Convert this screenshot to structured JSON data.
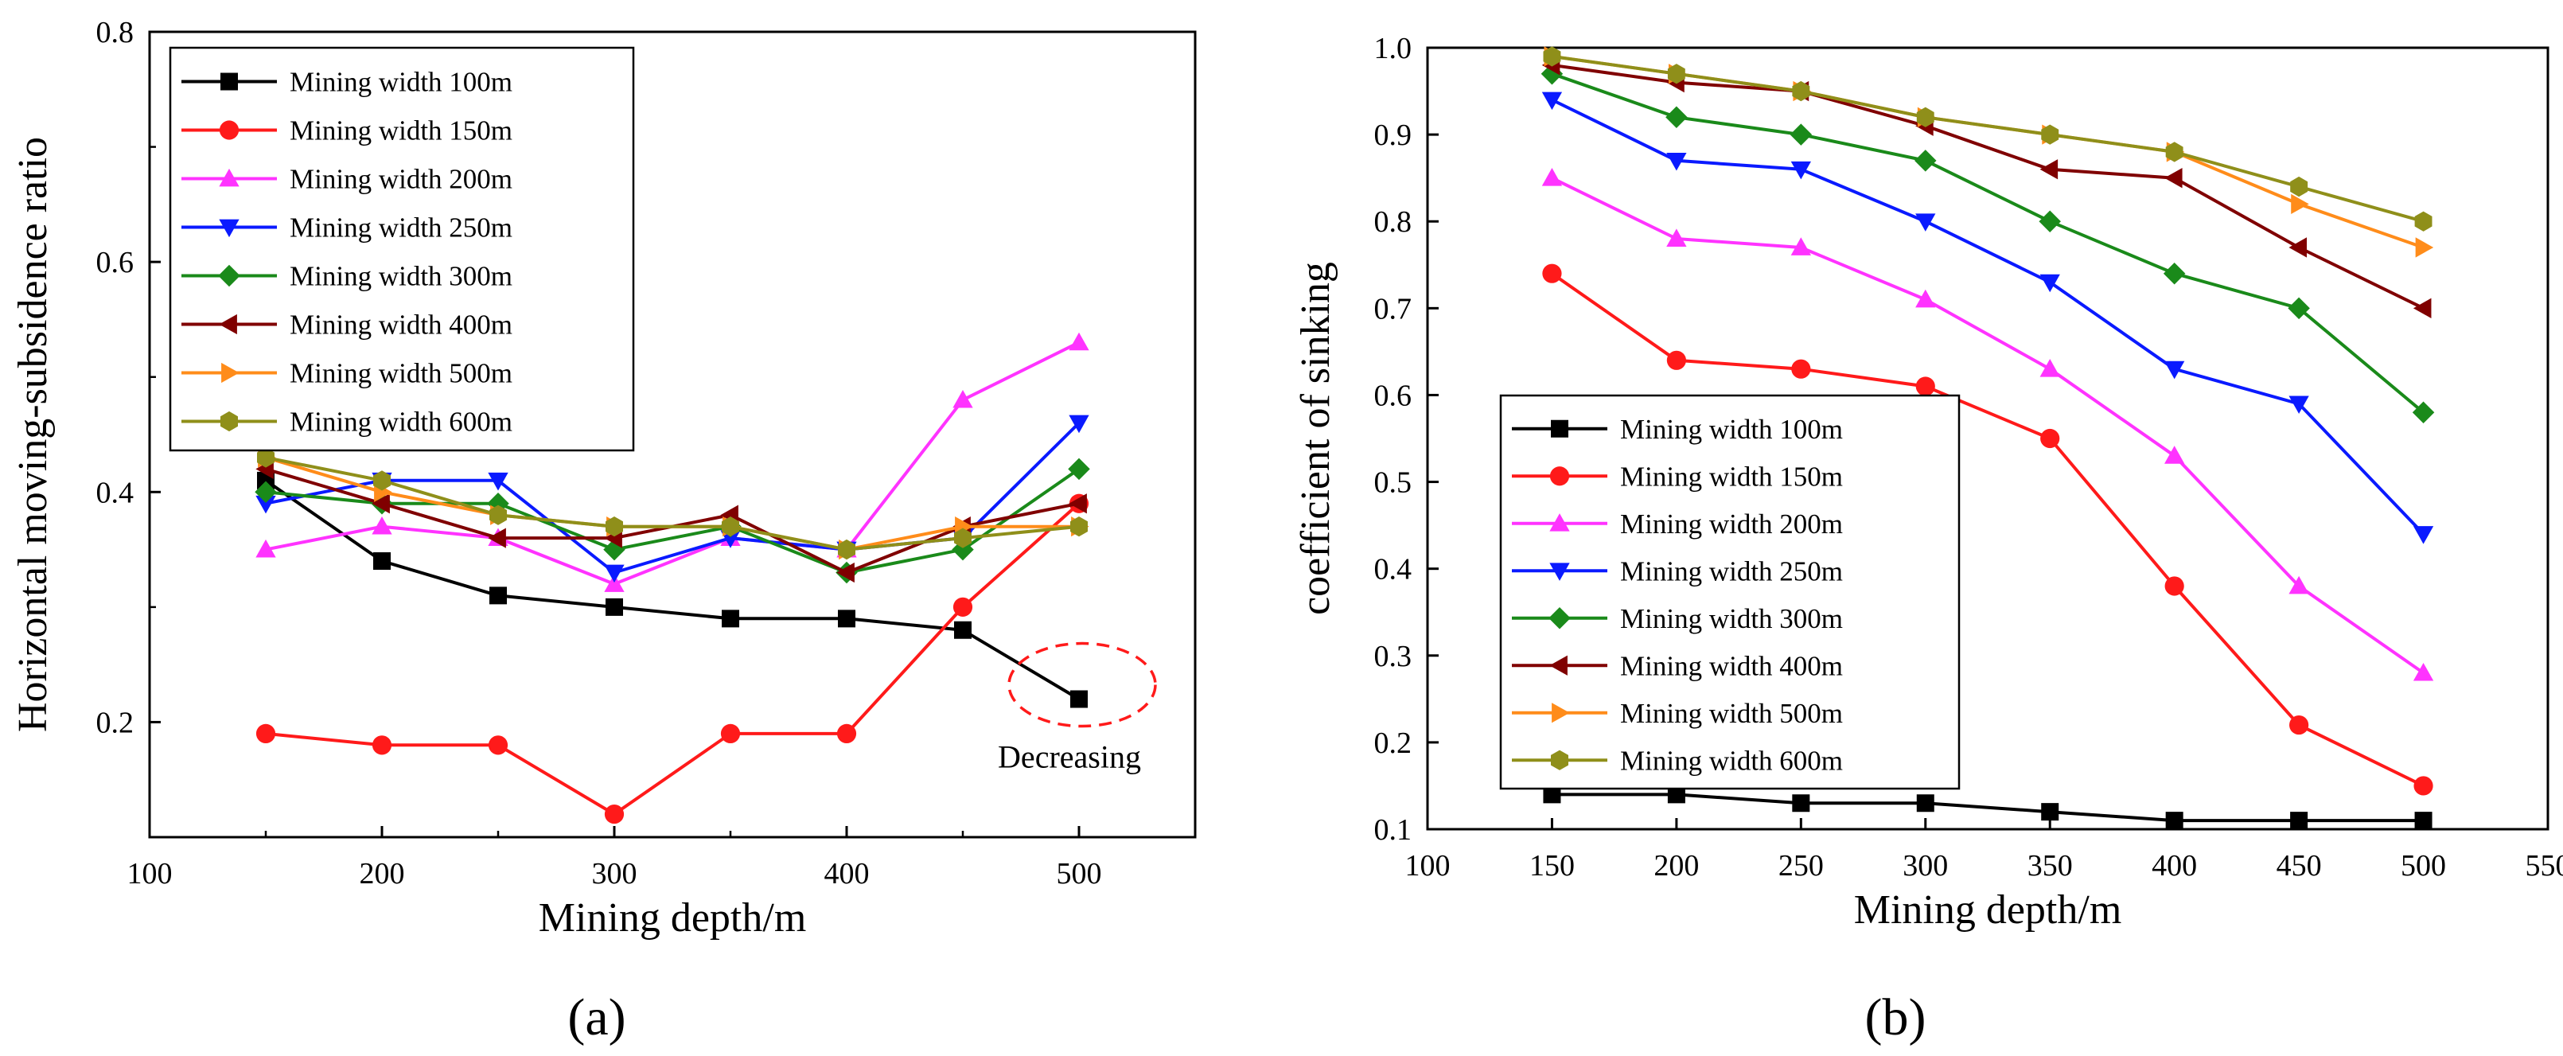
{
  "chart_data": [
    {
      "type": "line",
      "panel_label": "(a)",
      "title": "",
      "xlabel": "Mining depth/m",
      "ylabel": "Horizontal moving-subsidence ratio",
      "xlim": [
        100,
        550
      ],
      "ylim": [
        0.1,
        0.8
      ],
      "xticks": [
        "100",
        "200",
        "300",
        "400",
        "500"
      ],
      "yticks": [
        "0.2",
        "0.4",
        "0.6",
        "0.8"
      ],
      "legend_position": "top-left",
      "x": [
        150,
        200,
        250,
        300,
        350,
        400,
        450,
        500
      ],
      "series": [
        {
          "name": "Mining width 100m",
          "color": "#000000",
          "marker": "square",
          "values": [
            0.41,
            0.34,
            0.31,
            0.3,
            0.29,
            0.29,
            0.28,
            0.22
          ]
        },
        {
          "name": "Mining width 150m",
          "color": "#ff1a1a",
          "marker": "circle",
          "values": [
            0.19,
            0.18,
            0.18,
            0.12,
            0.19,
            0.19,
            0.3,
            0.39
          ]
        },
        {
          "name": "Mining width 200m",
          "color": "#ff33ff",
          "marker": "triangle-up",
          "values": [
            0.35,
            0.37,
            0.36,
            0.32,
            0.36,
            0.35,
            0.48,
            0.53
          ]
        },
        {
          "name": "Mining width 250m",
          "color": "#0a1aff",
          "marker": "triangle-down",
          "values": [
            0.39,
            0.41,
            0.41,
            0.33,
            0.36,
            0.35,
            0.36,
            0.46
          ]
        },
        {
          "name": "Mining width 300m",
          "color": "#1a8a1a",
          "marker": "diamond",
          "values": [
            0.4,
            0.39,
            0.39,
            0.35,
            0.37,
            0.33,
            0.35,
            0.42
          ]
        },
        {
          "name": "Mining width 400m",
          "color": "#800000",
          "marker": "triangle-left",
          "values": [
            0.42,
            0.39,
            0.36,
            0.36,
            0.38,
            0.33,
            0.37,
            0.39
          ]
        },
        {
          "name": "Mining width 500m",
          "color": "#ff8c1a",
          "marker": "triangle-right",
          "values": [
            0.43,
            0.4,
            0.38,
            0.37,
            0.37,
            0.35,
            0.37,
            0.37
          ]
        },
        {
          "name": "Mining width 600m",
          "color": "#8f8f1a",
          "marker": "hexagon",
          "values": [
            0.43,
            0.41,
            0.38,
            0.37,
            0.37,
            0.35,
            0.36,
            0.37
          ]
        }
      ],
      "annotation": {
        "text": "Decreasing",
        "x": 500,
        "y": 0.22
      }
    },
    {
      "type": "line",
      "panel_label": "(b)",
      "title": "",
      "xlabel": "Mining depth/m",
      "ylabel": "coefficient of sinking",
      "xlim": [
        100,
        550
      ],
      "ylim": [
        0.1,
        1.0
      ],
      "xticks": [
        "100",
        "150",
        "200",
        "250",
        "300",
        "350",
        "400",
        "450",
        "500",
        "550"
      ],
      "yticks": [
        "0.1",
        "0.2",
        "0.3",
        "0.4",
        "0.5",
        "0.6",
        "0.7",
        "0.8",
        "0.9",
        "1.0"
      ],
      "legend_position": "bottom-left",
      "x": [
        150,
        200,
        250,
        300,
        350,
        400,
        450,
        500
      ],
      "series": [
        {
          "name": "Mining width 100m",
          "color": "#000000",
          "marker": "square",
          "values": [
            0.14,
            0.14,
            0.13,
            0.13,
            0.12,
            0.11,
            0.11,
            0.11
          ]
        },
        {
          "name": "Mining width 150m",
          "color": "#ff1a1a",
          "marker": "circle",
          "values": [
            0.74,
            0.64,
            0.63,
            0.61,
            0.55,
            0.38,
            0.22,
            0.15
          ]
        },
        {
          "name": "Mining width 200m",
          "color": "#ff33ff",
          "marker": "triangle-up",
          "values": [
            0.85,
            0.78,
            0.77,
            0.71,
            0.63,
            0.53,
            0.38,
            0.28
          ]
        },
        {
          "name": "Mining width 250m",
          "color": "#0a1aff",
          "marker": "triangle-down",
          "values": [
            0.94,
            0.87,
            0.86,
            0.8,
            0.73,
            0.63,
            0.59,
            0.44
          ]
        },
        {
          "name": "Mining width 300m",
          "color": "#1a8a1a",
          "marker": "diamond",
          "values": [
            0.97,
            0.92,
            0.9,
            0.87,
            0.8,
            0.74,
            0.7,
            0.58
          ]
        },
        {
          "name": "Mining width 400m",
          "color": "#800000",
          "marker": "triangle-left",
          "values": [
            0.98,
            0.96,
            0.95,
            0.91,
            0.86,
            0.85,
            0.77,
            0.7
          ]
        },
        {
          "name": "Mining width 500m",
          "color": "#ff8c1a",
          "marker": "triangle-right",
          "values": [
            0.99,
            0.97,
            0.95,
            0.92,
            0.9,
            0.88,
            0.82,
            0.77
          ]
        },
        {
          "name": "Mining width 600m",
          "color": "#8f8f1a",
          "marker": "hexagon",
          "values": [
            0.99,
            0.97,
            0.95,
            0.92,
            0.9,
            0.88,
            0.84,
            0.8
          ]
        }
      ]
    }
  ]
}
